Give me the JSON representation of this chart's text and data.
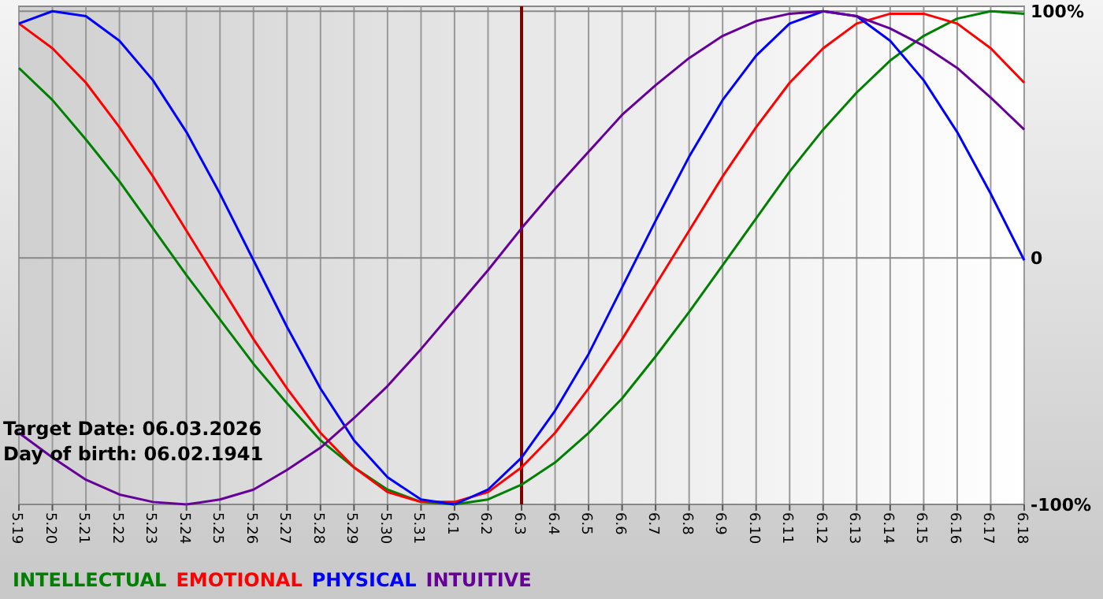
{
  "chart_data": {
    "type": "line",
    "categories": [
      "5.19",
      "5.20",
      "5.21",
      "5.22",
      "5.23",
      "5.24",
      "5.25",
      "5.26",
      "5.27",
      "5.28",
      "5.29",
      "5.30",
      "5.31",
      "6.1",
      "6.2",
      "6.3",
      "6.4",
      "6.5",
      "6.6",
      "6.7",
      "6.8",
      "6.9",
      "6.10",
      "6.11",
      "6.12",
      "6.13",
      "6.14",
      "6.15",
      "6.16",
      "6.17",
      "6.18"
    ],
    "series": [
      {
        "name": "INTELLECTUAL",
        "color": "#008000",
        "values": [
          77,
          64,
          48,
          31,
          12,
          -7,
          -25,
          -43,
          -59,
          -74,
          -85,
          -94,
          -99,
          -100,
          -98,
          -92,
          -83,
          -71,
          -57,
          -40,
          -22,
          -3,
          16,
          35,
          52,
          67,
          80,
          90,
          97,
          100,
          99
        ]
      },
      {
        "name": "EMOTIONAL",
        "color": "#ff0000",
        "values": [
          95,
          85,
          71,
          53,
          33,
          11,
          -11,
          -33,
          -53,
          -71,
          -85,
          -95,
          -99,
          -99,
          -95,
          -85,
          -71,
          -53,
          -33,
          -11,
          11,
          33,
          53,
          71,
          85,
          95,
          99,
          99,
          95,
          85,
          71
        ]
      },
      {
        "name": "PHYSICAL",
        "color": "#0000ff",
        "values": [
          95,
          100,
          98,
          88,
          72,
          51,
          26,
          -1,
          -28,
          -53,
          -74,
          -89,
          -98,
          -100,
          -94,
          -81,
          -62,
          -39,
          -12,
          15,
          41,
          64,
          82,
          95,
          100,
          98,
          88,
          72,
          51,
          26,
          -1
        ]
      },
      {
        "name": "INTUITIVE",
        "color": "#660099",
        "values": [
          -71,
          -81,
          -90,
          -96,
          -99,
          -100,
          -98,
          -94,
          -86,
          -77,
          -65,
          -52,
          -37,
          -21,
          -5,
          12,
          28,
          43,
          58,
          70,
          81,
          90,
          96,
          99,
          100,
          98,
          93,
          86,
          77,
          65,
          52
        ]
      }
    ],
    "ylim": [
      -100,
      102
    ],
    "yticks": [
      {
        "value": 100,
        "label": "100%"
      },
      0,
      {
        "value": -100,
        "label": "-100%"
      }
    ],
    "grid": true,
    "ref_lines": [
      {
        "axis": "x",
        "value": "6.3",
        "color": "#800000"
      }
    ],
    "annotations": [
      "Target Date: 06.03.2026",
      "Day of birth: 06.02.1941"
    ],
    "legend": "bottom",
    "marker": "none",
    "line_style": "solid"
  }
}
